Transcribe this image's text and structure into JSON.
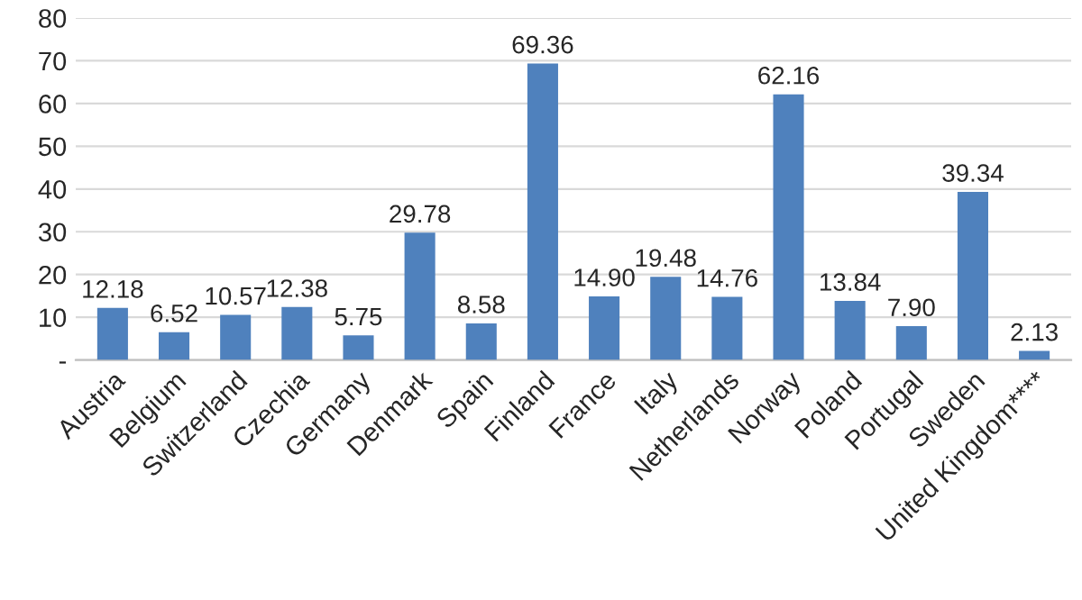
{
  "chart_data": {
    "type": "bar",
    "categories": [
      "Austria",
      "Belgium",
      "Switzerland",
      "Czechia",
      "Germany",
      "Denmark",
      "Spain",
      "Finland",
      "France",
      "Italy",
      "Netherlands",
      "Norway",
      "Poland",
      "Portugal",
      "Sweden",
      "United Kingdom****"
    ],
    "values": [
      12.18,
      6.52,
      10.57,
      12.38,
      5.75,
      29.78,
      8.58,
      69.36,
      14.9,
      19.48,
      14.76,
      62.16,
      13.84,
      7.9,
      39.34,
      2.13
    ],
    "value_labels": [
      "12.18",
      "6.52",
      "10.57",
      "12.38",
      "5.75",
      "29.78",
      "8.58",
      "69.36",
      "14.90",
      "19.48",
      "14.76",
      "62.16",
      "13.84",
      "7.90",
      "39.34",
      "2.13"
    ],
    "color": "#4f81bd",
    "ylim": [
      0,
      80
    ],
    "yticks": [
      {
        "value": 0,
        "label": "-"
      },
      10,
      20,
      30,
      40,
      50,
      60,
      70,
      80
    ],
    "grid": "y"
  }
}
